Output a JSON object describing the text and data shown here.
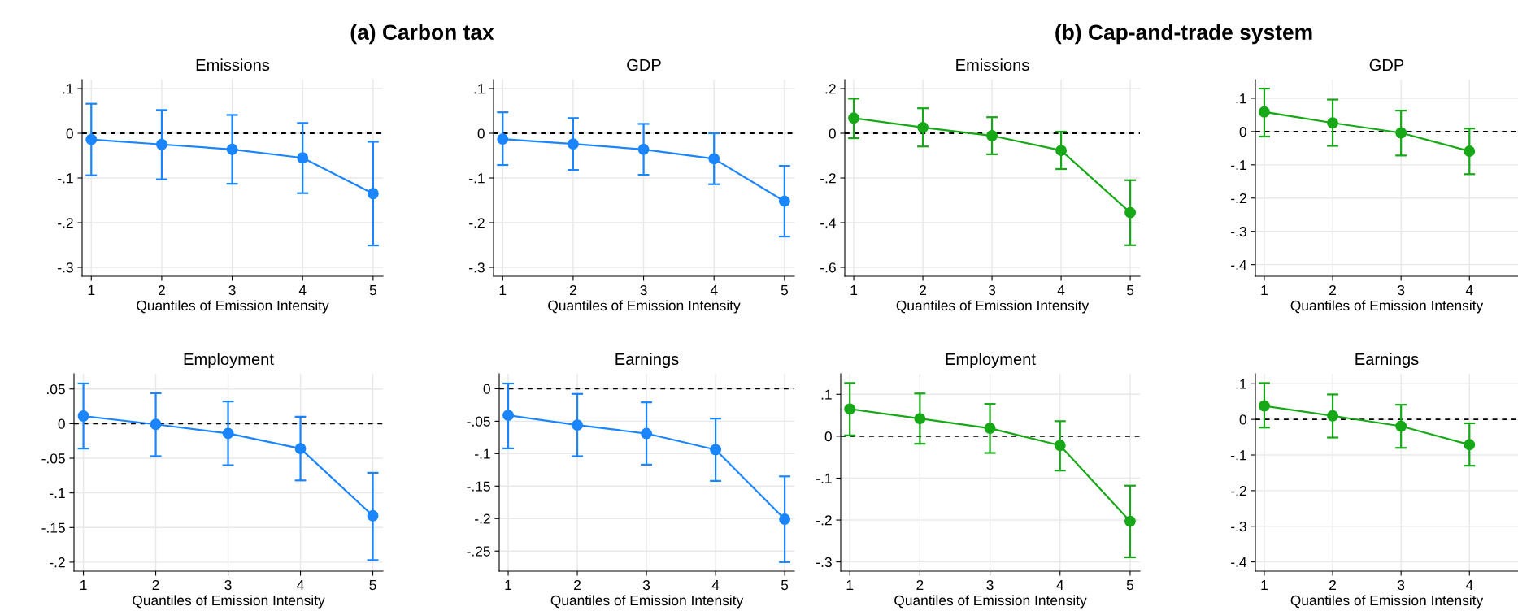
{
  "chart_data": [
    {
      "type": "line",
      "title": "Emissions",
      "xlabel": "Quantiles of Emission Intensity",
      "annotations": [
        "(a) Carbon tax"
      ],
      "x": [
        1,
        2,
        3,
        4,
        5
      ],
      "xlim": [
        0.87,
        5.14
      ],
      "xticks": [
        1,
        2,
        3,
        4,
        5
      ],
      "ylim": [
        -0.32,
        0.12
      ],
      "yticks": [
        {
          "value": 0.1,
          "label": ".1"
        },
        0,
        {
          "value": -0.1,
          "label": "-.1"
        },
        {
          "value": -0.2,
          "label": "-.2"
        },
        {
          "value": -0.3,
          "label": "-.3"
        }
      ],
      "grid": true,
      "marker": "circle",
      "line_style": "solid",
      "ref_lines": [
        {
          "axis": "y",
          "value": 0,
          "color": "#000000",
          "line_style": "dashed"
        }
      ],
      "series": [
        {
          "color": "#1a85ff",
          "values": [
            -0.014,
            -0.025,
            -0.036,
            -0.055,
            -0.135
          ],
          "errors": [
            [
              -0.094,
              0.066
            ],
            [
              -0.103,
              0.052
            ],
            [
              -0.113,
              0.041
            ],
            [
              -0.134,
              0.023
            ],
            [
              -0.251,
              -0.019
            ]
          ]
        }
      ]
    },
    {
      "type": "line",
      "title": "GDP",
      "xlabel": "Quantiles of Emission Intensity",
      "x": [
        1,
        2,
        3,
        4,
        5
      ],
      "xlim": [
        0.87,
        5.14
      ],
      "xticks": [
        1,
        2,
        3,
        4,
        5
      ],
      "ylim": [
        -0.32,
        0.12
      ],
      "yticks": [
        {
          "value": 0.1,
          "label": ".1"
        },
        0,
        {
          "value": -0.1,
          "label": "-.1"
        },
        {
          "value": -0.2,
          "label": "-.2"
        },
        {
          "value": -0.3,
          "label": "-.3"
        }
      ],
      "grid": true,
      "marker": "circle",
      "line_style": "solid",
      "ref_lines": [
        {
          "axis": "y",
          "value": 0,
          "color": "#000000",
          "line_style": "dashed"
        }
      ],
      "series": [
        {
          "color": "#1a85ff",
          "values": [
            -0.013,
            -0.024,
            -0.036,
            -0.057,
            -0.152
          ],
          "errors": [
            [
              -0.071,
              0.047
            ],
            [
              -0.082,
              0.034
            ],
            [
              -0.093,
              0.021
            ],
            [
              -0.114,
              0.0
            ],
            [
              -0.231,
              -0.073
            ]
          ]
        }
      ]
    },
    {
      "type": "line",
      "title": "Emissions",
      "xlabel": "Quantiles of Emission Intensity",
      "annotations": [
        "(b) Cap-and-trade system"
      ],
      "x": [
        1,
        2,
        3,
        4,
        5
      ],
      "xlim": [
        0.87,
        5.14
      ],
      "xticks": [
        1,
        2,
        3,
        4,
        5
      ],
      "ylim": [
        -0.64,
        0.24
      ],
      "yticks": [
        {
          "value": 0.2,
          "label": ".2"
        },
        0,
        {
          "value": -0.2,
          "label": "-.2"
        },
        {
          "value": -0.4,
          "label": "-.4"
        },
        {
          "value": -0.6,
          "label": "-.6"
        }
      ],
      "grid": true,
      "marker": "circle",
      "line_style": "solid",
      "ref_lines": [
        {
          "axis": "y",
          "value": 0,
          "color": "#000000",
          "line_style": "dashed"
        }
      ],
      "series": [
        {
          "color": "#17a817",
          "values": [
            0.068,
            0.026,
            -0.011,
            -0.077,
            -0.355
          ],
          "errors": [
            [
              -0.022,
              0.155
            ],
            [
              -0.059,
              0.112
            ],
            [
              -0.094,
              0.072
            ],
            [
              -0.16,
              0.007
            ],
            [
              -0.501,
              -0.21
            ]
          ]
        }
      ]
    },
    {
      "type": "line",
      "title": "GDP",
      "xlabel": "Quantiles of Emission Intensity",
      "x": [
        1,
        2,
        3,
        4
      ],
      "xlim": [
        0.87,
        4.71
      ],
      "xticks": [
        1,
        2,
        3,
        4
      ],
      "ylim": [
        -0.435,
        0.156
      ],
      "yticks": [
        {
          "value": 0.1,
          "label": ".1"
        },
        0,
        {
          "value": -0.1,
          "label": "-.1"
        },
        {
          "value": -0.2,
          "label": "-.2"
        },
        {
          "value": -0.3,
          "label": "-.3"
        },
        {
          "value": -0.4,
          "label": "-.4"
        }
      ],
      "grid": true,
      "marker": "circle",
      "line_style": "solid",
      "ref_lines": [
        {
          "axis": "y",
          "value": 0,
          "color": "#000000",
          "line_style": "dashed"
        }
      ],
      "series": [
        {
          "color": "#17a817",
          "values": [
            0.059,
            0.026,
            -0.004,
            -0.059
          ],
          "errors": [
            [
              -0.015,
              0.129
            ],
            [
              -0.043,
              0.096
            ],
            [
              -0.072,
              0.063
            ],
            [
              -0.128,
              0.009
            ]
          ]
        }
      ]
    },
    {
      "type": "line",
      "title": "Employment",
      "xlabel": "Quantiles of Emission Intensity",
      "x": [
        1,
        2,
        3,
        4,
        5
      ],
      "xlim": [
        0.87,
        5.14
      ],
      "xticks": [
        1,
        2,
        3,
        4,
        5
      ],
      "ylim": [
        -0.213,
        0.072
      ],
      "yticks": [
        {
          "value": 0.05,
          "label": ".05"
        },
        0,
        {
          "value": -0.05,
          "label": "-.05"
        },
        {
          "value": -0.1,
          "label": "-.1"
        },
        {
          "value": -0.15,
          "label": "-.15"
        },
        {
          "value": -0.2,
          "label": "-.2"
        }
      ],
      "grid": true,
      "marker": "circle",
      "line_style": "solid",
      "ref_lines": [
        {
          "axis": "y",
          "value": 0,
          "color": "#000000",
          "line_style": "dashed"
        }
      ],
      "series": [
        {
          "color": "#1a85ff",
          "values": [
            0.011,
            -0.001,
            -0.014,
            -0.036,
            -0.133
          ],
          "errors": [
            [
              -0.036,
              0.058
            ],
            [
              -0.047,
              0.044
            ],
            [
              -0.06,
              0.032
            ],
            [
              -0.082,
              0.01
            ],
            [
              -0.197,
              -0.071
            ]
          ]
        }
      ]
    },
    {
      "type": "line",
      "title": "Earnings",
      "xlabel": "Quantiles of Emission Intensity",
      "x": [
        1,
        2,
        3,
        4,
        5
      ],
      "xlim": [
        0.87,
        5.14
      ],
      "xticks": [
        1,
        2,
        3,
        4,
        5
      ],
      "ylim": [
        -0.281,
        0.023
      ],
      "yticks": [
        0,
        {
          "value": -0.05,
          "label": "-.05"
        },
        {
          "value": -0.1,
          "label": "-.1"
        },
        {
          "value": -0.15,
          "label": "-.15"
        },
        {
          "value": -0.2,
          "label": "-.2"
        },
        {
          "value": -0.25,
          "label": "-.25"
        }
      ],
      "grid": true,
      "marker": "circle",
      "line_style": "solid",
      "ref_lines": [
        {
          "axis": "y",
          "value": 0,
          "color": "#000000",
          "line_style": "dashed"
        }
      ],
      "series": [
        {
          "color": "#1a85ff",
          "values": [
            -0.041,
            -0.056,
            -0.069,
            -0.094,
            -0.201
          ],
          "errors": [
            [
              -0.092,
              0.008
            ],
            [
              -0.104,
              -0.008
            ],
            [
              -0.117,
              -0.021
            ],
            [
              -0.142,
              -0.046
            ],
            [
              -0.267,
              -0.135
            ]
          ]
        }
      ]
    },
    {
      "type": "line",
      "title": "Employment",
      "xlabel": "Quantiles of Emission Intensity",
      "x": [
        1,
        2,
        3,
        4,
        5
      ],
      "xlim": [
        0.87,
        5.14
      ],
      "xticks": [
        1,
        2,
        3,
        4,
        5
      ],
      "ylim": [
        -0.322,
        0.149
      ],
      "yticks": [
        {
          "value": 0.1,
          "label": ".1"
        },
        0,
        {
          "value": -0.1,
          "label": "-.1"
        },
        {
          "value": -0.2,
          "label": "-.2"
        },
        {
          "value": -0.3,
          "label": "-.3"
        }
      ],
      "grid": true,
      "marker": "circle",
      "line_style": "solid",
      "ref_lines": [
        {
          "axis": "y",
          "value": 0,
          "color": "#000000",
          "line_style": "dashed"
        }
      ],
      "series": [
        {
          "color": "#17a817",
          "values": [
            0.065,
            0.042,
            0.019,
            -0.022,
            -0.203
          ],
          "errors": [
            [
              0.002,
              0.127
            ],
            [
              -0.018,
              0.102
            ],
            [
              -0.04,
              0.077
            ],
            [
              -0.082,
              0.036
            ],
            [
              -0.289,
              -0.118
            ]
          ]
        }
      ]
    },
    {
      "type": "line",
      "title": "Earnings",
      "xlabel": "Quantiles of Emission Intensity",
      "x": [
        1,
        2,
        3,
        4
      ],
      "xlim": [
        0.87,
        4.71
      ],
      "xticks": [
        1,
        2,
        3,
        4
      ],
      "ylim": [
        -0.426,
        0.128
      ],
      "yticks": [
        {
          "value": 0.1,
          "label": ".1"
        },
        0,
        {
          "value": -0.1,
          "label": "-.1"
        },
        {
          "value": -0.2,
          "label": "-.2"
        },
        {
          "value": -0.3,
          "label": "-.3"
        },
        {
          "value": -0.4,
          "label": "-.4"
        }
      ],
      "grid": true,
      "marker": "circle",
      "line_style": "solid",
      "ref_lines": [
        {
          "axis": "y",
          "value": 0,
          "color": "#000000",
          "line_style": "dashed"
        }
      ],
      "series": [
        {
          "color": "#17a817",
          "values": [
            0.038,
            0.01,
            -0.019,
            -0.071
          ],
          "errors": [
            [
              -0.023,
              0.102
            ],
            [
              -0.051,
              0.07
            ],
            [
              -0.08,
              0.041
            ],
            [
              -0.13,
              -0.011
            ]
          ]
        }
      ]
    }
  ]
}
